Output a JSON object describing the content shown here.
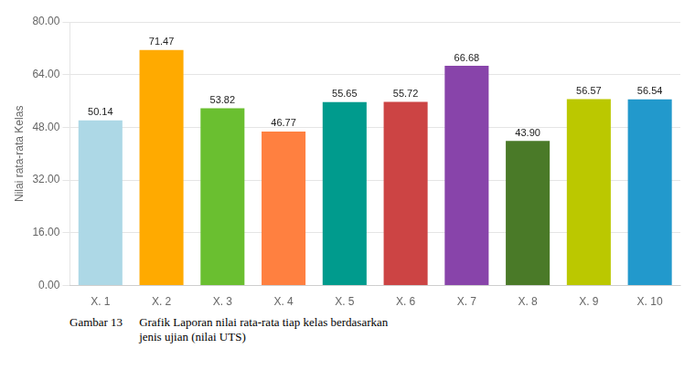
{
  "chart_data": {
    "type": "bar",
    "categories": [
      "X. 1",
      "X. 2",
      "X. 3",
      "X. 4",
      "X. 5",
      "X. 6",
      "X. 7",
      "X. 8",
      "X. 9",
      "X. 10"
    ],
    "values": [
      50.14,
      71.47,
      53.82,
      46.77,
      55.65,
      55.72,
      66.68,
      43.9,
      56.57,
      56.54
    ],
    "value_labels": [
      "50.14",
      "71.47",
      "53.82",
      "46.77",
      "55.65",
      "55.72",
      "66.68",
      "43.90",
      "56.57",
      "56.54"
    ],
    "colors": [
      "#add8e6",
      "#ffaa00",
      "#6abf30",
      "#ff8040",
      "#009b8d",
      "#cc4444",
      "#8844aa",
      "#4a7a28",
      "#bbc800",
      "#2299cc"
    ],
    "ylabel": "Nilai rata-rata Kelas",
    "ylim": [
      0,
      80
    ],
    "yticks": [
      {
        "value": 0,
        "label": "0.00"
      },
      {
        "value": 16,
        "label": "16.00"
      },
      {
        "value": 32,
        "label": "32.00"
      },
      {
        "value": 48,
        "label": "48.00"
      },
      {
        "value": 64,
        "label": "64.00"
      },
      {
        "value": 80,
        "label": "80.00"
      }
    ],
    "grid": true,
    "data_labels": true,
    "annotations": [
      "Gambar 13",
      "Grafik Laporan nilai rata-rata tiap kelas berdasarkan\njenis ujian (nilai UTS)"
    ]
  }
}
